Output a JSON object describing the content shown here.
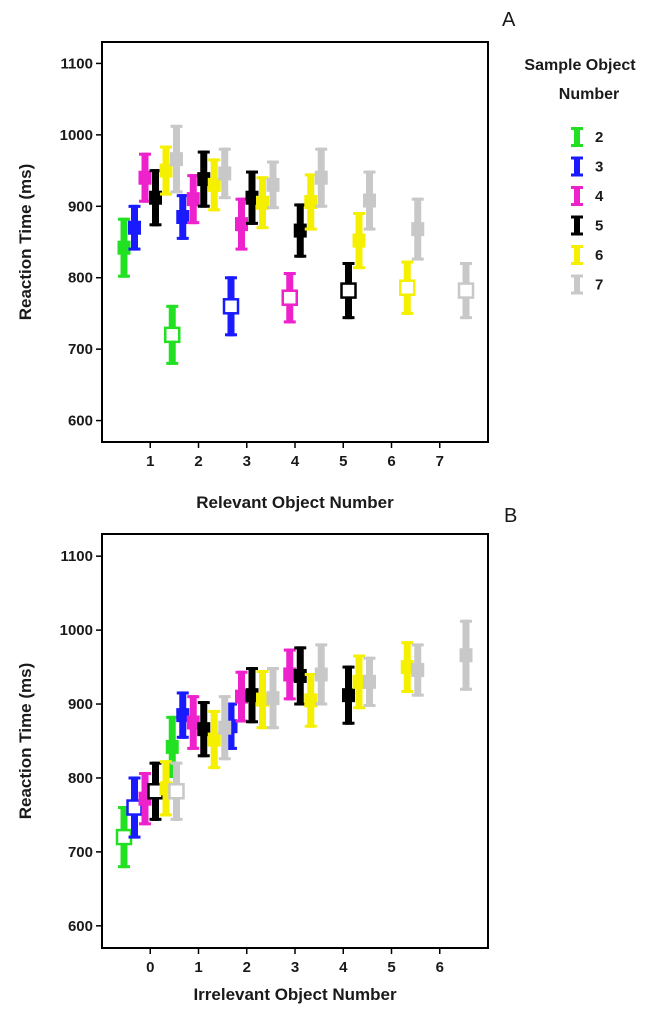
{
  "legend": {
    "title_line1": "Sample Object",
    "title_line2": "Number",
    "entries": [
      {
        "label": "2",
        "color": "#22e022"
      },
      {
        "label": "3",
        "color": "#1a1aff"
      },
      {
        "label": "4",
        "color": "#ee22cc"
      },
      {
        "label": "5",
        "color": "#000000"
      },
      {
        "label": "6",
        "color": "#f5f000"
      },
      {
        "label": "7",
        "color": "#c8c8c8"
      }
    ]
  },
  "chart_data": [
    {
      "type": "scatter",
      "panel_label": "A",
      "xlabel": "Relevant Object Number",
      "ylabel": "Reaction Time (ms)",
      "x_ticks": [
        "1",
        "2",
        "3",
        "4",
        "5",
        "6",
        "7"
      ],
      "y_ticks": [
        "600",
        "700",
        "800",
        "900",
        "1000",
        "1100"
      ],
      "xlim": [
        0,
        8
      ],
      "ylim": [
        570,
        1130
      ],
      "series": [
        {
          "name": "2",
          "points": [
            {
              "x": 1,
              "y": 842,
              "lo": 800,
              "hi": 884,
              "open": false
            },
            {
              "x": 2,
              "y": 720,
              "lo": 678,
              "hi": 762,
              "open": true
            }
          ]
        },
        {
          "name": "3",
          "points": [
            {
              "x": 1,
              "y": 870,
              "lo": 838,
              "hi": 902,
              "open": false
            },
            {
              "x": 2,
              "y": 885,
              "lo": 853,
              "hi": 917,
              "open": false
            },
            {
              "x": 3,
              "y": 760,
              "lo": 718,
              "hi": 802,
              "open": true
            }
          ]
        },
        {
          "name": "4",
          "points": [
            {
              "x": 1,
              "y": 940,
              "lo": 905,
              "hi": 975,
              "open": false
            },
            {
              "x": 2,
              "y": 910,
              "lo": 875,
              "hi": 945,
              "open": false
            },
            {
              "x": 3,
              "y": 875,
              "lo": 838,
              "hi": 912,
              "open": false
            },
            {
              "x": 4,
              "y": 772,
              "lo": 736,
              "hi": 808,
              "open": true
            }
          ]
        },
        {
          "name": "5",
          "points": [
            {
              "x": 1,
              "y": 912,
              "lo": 872,
              "hi": 952,
              "open": false
            },
            {
              "x": 2,
              "y": 938,
              "lo": 898,
              "hi": 978,
              "open": false
            },
            {
              "x": 3,
              "y": 912,
              "lo": 874,
              "hi": 950,
              "open": false
            },
            {
              "x": 4,
              "y": 866,
              "lo": 828,
              "hi": 904,
              "open": false
            },
            {
              "x": 5,
              "y": 782,
              "lo": 742,
              "hi": 822,
              "open": true
            }
          ]
        },
        {
          "name": "6",
          "points": [
            {
              "x": 1,
              "y": 950,
              "lo": 915,
              "hi": 985,
              "open": false
            },
            {
              "x": 2,
              "y": 930,
              "lo": 893,
              "hi": 967,
              "open": false
            },
            {
              "x": 3,
              "y": 905,
              "lo": 868,
              "hi": 942,
              "open": false
            },
            {
              "x": 4,
              "y": 906,
              "lo": 866,
              "hi": 946,
              "open": false
            },
            {
              "x": 5,
              "y": 852,
              "lo": 812,
              "hi": 892,
              "open": false
            },
            {
              "x": 6,
              "y": 786,
              "lo": 748,
              "hi": 824,
              "open": true
            }
          ]
        },
        {
          "name": "7",
          "points": [
            {
              "x": 1,
              "y": 966,
              "lo": 918,
              "hi": 1014,
              "open": false
            },
            {
              "x": 2,
              "y": 946,
              "lo": 910,
              "hi": 982,
              "open": false
            },
            {
              "x": 3,
              "y": 930,
              "lo": 896,
              "hi": 964,
              "open": false
            },
            {
              "x": 4,
              "y": 940,
              "lo": 898,
              "hi": 982,
              "open": false
            },
            {
              "x": 5,
              "y": 908,
              "lo": 866,
              "hi": 950,
              "open": false
            },
            {
              "x": 6,
              "y": 868,
              "lo": 824,
              "hi": 912,
              "open": false
            },
            {
              "x": 7,
              "y": 782,
              "lo": 742,
              "hi": 822,
              "open": true
            }
          ]
        }
      ]
    },
    {
      "type": "scatter",
      "panel_label": "B",
      "xlabel": "Irrelevant Object Number",
      "ylabel": "Reaction Time (ms)",
      "x_ticks": [
        "0",
        "1",
        "2",
        "3",
        "4",
        "5",
        "6"
      ],
      "y_ticks": [
        "600",
        "700",
        "800",
        "900",
        "1000",
        "1100"
      ],
      "xlim": [
        -1,
        7
      ],
      "ylim": [
        570,
        1130
      ],
      "series": [
        {
          "name": "2",
          "points": [
            {
              "x": 0,
              "y": 720,
              "lo": 678,
              "hi": 762,
              "open": true
            },
            {
              "x": 1,
              "y": 842,
              "lo": 800,
              "hi": 884,
              "open": false
            }
          ]
        },
        {
          "name": "3",
          "points": [
            {
              "x": 0,
              "y": 760,
              "lo": 718,
              "hi": 802,
              "open": true
            },
            {
              "x": 1,
              "y": 885,
              "lo": 853,
              "hi": 917,
              "open": false
            },
            {
              "x": 2,
              "y": 870,
              "lo": 838,
              "hi": 902,
              "open": false
            }
          ]
        },
        {
          "name": "4",
          "points": [
            {
              "x": 0,
              "y": 772,
              "lo": 736,
              "hi": 808,
              "open": false
            },
            {
              "x": 1,
              "y": 875,
              "lo": 838,
              "hi": 912,
              "open": false
            },
            {
              "x": 2,
              "y": 910,
              "lo": 875,
              "hi": 945,
              "open": false
            },
            {
              "x": 3,
              "y": 940,
              "lo": 905,
              "hi": 975,
              "open": false
            }
          ]
        },
        {
          "name": "5",
          "points": [
            {
              "x": 0,
              "y": 782,
              "lo": 742,
              "hi": 822,
              "open": true
            },
            {
              "x": 1,
              "y": 866,
              "lo": 828,
              "hi": 904,
              "open": false
            },
            {
              "x": 2,
              "y": 912,
              "lo": 874,
              "hi": 950,
              "open": false
            },
            {
              "x": 3,
              "y": 938,
              "lo": 898,
              "hi": 978,
              "open": false
            },
            {
              "x": 4,
              "y": 912,
              "lo": 872,
              "hi": 952,
              "open": false
            }
          ]
        },
        {
          "name": "6",
          "points": [
            {
              "x": 0,
              "y": 786,
              "lo": 748,
              "hi": 824,
              "open": false
            },
            {
              "x": 1,
              "y": 852,
              "lo": 812,
              "hi": 892,
              "open": false
            },
            {
              "x": 2,
              "y": 906,
              "lo": 866,
              "hi": 946,
              "open": false
            },
            {
              "x": 3,
              "y": 905,
              "lo": 868,
              "hi": 942,
              "open": false
            },
            {
              "x": 4,
              "y": 930,
              "lo": 893,
              "hi": 967,
              "open": false
            },
            {
              "x": 5,
              "y": 950,
              "lo": 915,
              "hi": 985,
              "open": false
            }
          ]
        },
        {
          "name": "7",
          "points": [
            {
              "x": 0,
              "y": 782,
              "lo": 742,
              "hi": 822,
              "open": true
            },
            {
              "x": 1,
              "y": 868,
              "lo": 824,
              "hi": 912,
              "open": false
            },
            {
              "x": 2,
              "y": 908,
              "lo": 866,
              "hi": 950,
              "open": false
            },
            {
              "x": 3,
              "y": 940,
              "lo": 898,
              "hi": 982,
              "open": false
            },
            {
              "x": 4,
              "y": 930,
              "lo": 896,
              "hi": 964,
              "open": false
            },
            {
              "x": 5,
              "y": 946,
              "lo": 910,
              "hi": 982,
              "open": false
            },
            {
              "x": 6,
              "y": 966,
              "lo": 918,
              "hi": 1014,
              "open": false
            }
          ]
        }
      ]
    }
  ]
}
